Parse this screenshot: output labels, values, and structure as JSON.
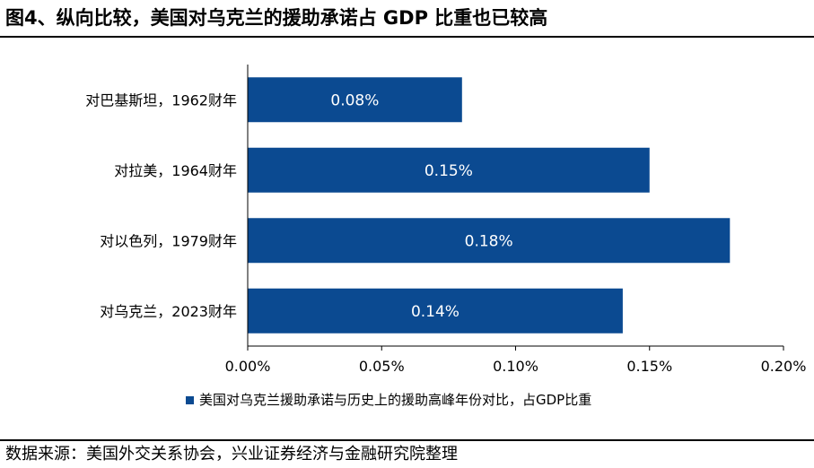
{
  "figure_title": "图4、纵向比较，美国对乌克兰的援助承诺占 GDP 比重也已较高",
  "source_text": "数据来源：美国外交关系协会，兴业证券经济与金融研究院整理",
  "colors": {
    "bar": "#0b4a91",
    "axis": "#000000",
    "background": "#ffffff"
  },
  "chart_data": {
    "type": "bar",
    "orientation": "horizontal",
    "categories": [
      "对巴基斯坦，1962财年",
      "对拉美，1964财年",
      "对以色列，1979财年",
      "对乌克兰，2023财年"
    ],
    "series": [
      {
        "name": "美国对乌克兰援助承诺与历史上的援助高峰年份对比，占GDP比重",
        "values": [
          0.08,
          0.15,
          0.18,
          0.14
        ],
        "data_labels": [
          "0.08%",
          "0.15%",
          "0.18%",
          "0.14%"
        ]
      }
    ],
    "xlim": [
      0,
      0.2
    ],
    "xticks": [
      0,
      0.05,
      0.1,
      0.15,
      0.2
    ],
    "xtick_labels": [
      "0.00%",
      "0.05%",
      "0.10%",
      "0.15%",
      "0.20%"
    ],
    "grid": false,
    "legend_position": "bottom"
  }
}
